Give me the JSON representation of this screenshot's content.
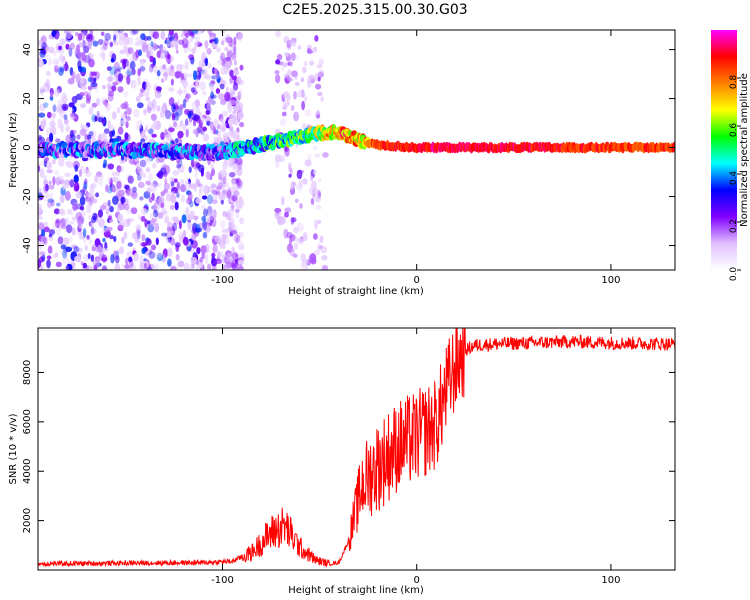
{
  "title": "C2E5.2025.315.00.30.G03",
  "chart_data": [
    {
      "type": "heatmap",
      "xlabel": "Height of straight line (km)",
      "ylabel": "Frequency (Hz)",
      "xlim": [
        -195,
        133
      ],
      "ylim": [
        -50,
        48
      ],
      "xticks": [
        "-100",
        "0",
        "100"
      ],
      "yticks": [
        "-40",
        "-20",
        "0",
        "20",
        "40"
      ],
      "colorbar": {
        "label": "Normalized spectral amplitude",
        "range": [
          0,
          1
        ],
        "ticks": [
          "0.0",
          "0.2",
          "0.4",
          "0.6",
          "0.8"
        ],
        "colors": [
          "#ffffff",
          "#e0c0ff",
          "#8000ff",
          "#0000ff",
          "#00ffff",
          "#00ff00",
          "#ffff00",
          "#ff8000",
          "#ff0000",
          "#ff00ff"
        ]
      },
      "ridge": {
        "x": [
          -195,
          -150,
          -100,
          -75,
          -50,
          -38,
          -30,
          -20,
          0,
          50,
          100,
          133
        ],
        "frequency": [
          -1,
          -1,
          -2,
          2,
          6,
          6,
          3,
          1,
          0,
          0,
          0,
          0
        ],
        "amplitude": [
          0.25,
          0.3,
          0.3,
          0.45,
          0.6,
          0.8,
          0.7,
          0.85,
          0.9,
          0.9,
          0.85,
          0.85
        ]
      }
    },
    {
      "type": "line",
      "xlabel": "Height of straight line (km)",
      "ylabel": "SNR (10 * v/v)",
      "xlim": [
        -195,
        133
      ],
      "ylim": [
        0,
        9800
      ],
      "xticks": [
        "-100",
        "0",
        "100"
      ],
      "yticks": [
        "2000",
        "4000",
        "6000",
        "8000"
      ],
      "color": "#ff0000",
      "series": [
        {
          "name": "SNR",
          "x": [
            -195,
            -150,
            -110,
            -95,
            -85,
            -75,
            -68,
            -60,
            -52,
            -45,
            -40,
            -35,
            -28,
            -20,
            -10,
            0,
            10,
            15,
            20,
            25,
            30,
            40,
            60,
            80,
            100,
            133
          ],
          "values": [
            250,
            280,
            300,
            350,
            700,
            1500,
            1800,
            900,
            400,
            250,
            300,
            1200,
            3500,
            4200,
            5000,
            5400,
            5900,
            7200,
            8300,
            8900,
            9100,
            9150,
            9200,
            9250,
            9200,
            9150
          ]
        }
      ]
    }
  ]
}
